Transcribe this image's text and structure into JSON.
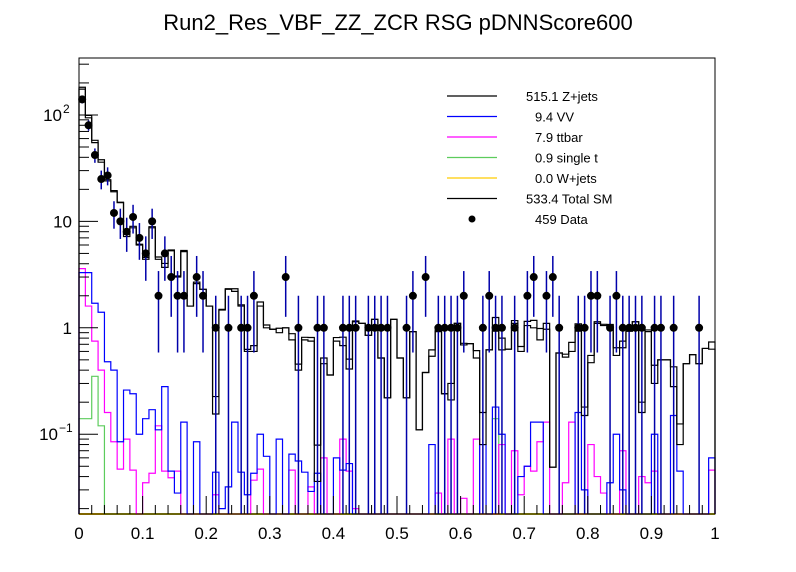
{
  "chart_data": {
    "type": "histogram",
    "title": "Run2_Res_VBF_ZZ_ZCR RSG  pDNNScore600",
    "xlabel": "",
    "ylabel": "",
    "xlim": [
      0,
      1
    ],
    "ylim": [
      0.0178,
      343
    ],
    "yscale": "log",
    "nbins": 100,
    "x_tick_labels": [
      "0",
      "0.1",
      "0.2",
      "0.3",
      "0.4",
      "0.5",
      "0.6",
      "0.7",
      "0.8",
      "0.9",
      "1"
    ],
    "y_tick_labels": [
      {
        "value": 100,
        "base": "10",
        "exp": "2"
      },
      {
        "value": 10,
        "base": "10",
        "exp": ""
      },
      {
        "value": 1,
        "base": "1",
        "exp": ""
      },
      {
        "value": 0.1,
        "base": "10",
        "exp": "−1"
      }
    ],
    "legend_position": "top-right",
    "series": [
      {
        "name": "Z+jets",
        "legend": "515.1 Z+jets",
        "color": "#000000",
        "values": [
          175,
          94,
          55,
          36,
          24,
          19,
          15,
          7.2,
          8.7,
          6,
          4.4,
          8.7,
          4.4,
          3.7,
          5.3,
          3,
          5.2,
          1.6,
          2.6,
          2.3,
          1.6,
          0.155,
          1.47,
          2.3,
          2.2,
          1.6,
          0.6,
          0.6,
          1.6,
          1.0,
          0.97,
          0.9,
          1.0,
          0.77,
          0.4,
          0.77,
          0.75,
          0.036,
          0.46,
          0.36,
          0.75,
          0.68,
          0.41,
          1.14,
          1.1,
          0.85,
          1.2,
          0.52,
          0.22,
          1.2,
          0.52,
          0.22,
          0.92,
          0.11,
          0.38,
          0.54,
          0.92,
          0.24,
          0.21,
          1.1,
          0.69,
          0.71,
          0.52,
          0.08,
          0.62,
          0.93,
          0.62,
          0.63,
          1.1,
          0.6,
          1.05,
          1.0,
          0.77,
          0.97,
          0.049,
          0.58,
          0.53,
          0.6,
          0.93,
          0.15,
          0.47,
          1.1,
          1.05,
          1.04,
          0.55,
          0.65,
          0.93,
          1.14,
          0.16,
          0.92,
          0.3,
          0.5,
          0.5,
          0.28,
          0.08,
          0.46,
          0.56,
          0.46,
          0.64,
          0.63
        ]
      },
      {
        "name": "VV",
        "legend": "9.4 VV",
        "color": "#0000ff",
        "values": [
          3.3,
          3.3,
          1.7,
          1.4,
          0.48,
          0.4,
          0.085,
          0.26,
          0.24,
          0.1,
          0.14,
          0.17,
          0.11,
          0.28,
          0.045,
          0.028,
          0.13,
          0,
          0.085,
          0,
          0,
          0.044,
          0.02,
          0.032,
          0.13,
          0.044,
          0.027,
          0.043,
          0.1,
          0.062,
          0,
          0.09,
          0,
          0.065,
          0.056,
          0.044,
          0.029,
          0.043,
          0,
          0,
          0.06,
          0.046,
          0.053,
          0,
          0,
          0,
          0,
          0,
          0,
          0,
          0,
          0,
          0,
          0,
          0,
          0.08,
          0,
          0,
          0,
          0,
          0,
          0,
          0,
          0.08,
          0,
          0.18,
          0.1,
          0,
          0,
          0.04,
          0.05,
          0.13,
          0.13,
          0,
          0,
          0,
          0,
          0,
          0.16,
          0.03,
          0,
          0,
          0,
          0.035,
          0.1,
          0.03,
          0,
          0,
          0,
          0,
          0.1,
          0,
          0,
          0.15,
          0.045,
          0,
          0,
          0,
          0,
          0.06
        ]
      },
      {
        "name": "ttbar",
        "legend": "7.9 ttbar",
        "color": "#ff00ff",
        "values": [
          3.6,
          1.6,
          0.75,
          0.4,
          0.16,
          0.085,
          0.047,
          0.09,
          0.046,
          0,
          0.035,
          0.043,
          0.12,
          0.045,
          0.039,
          0.045,
          0,
          0,
          0,
          0,
          0,
          0.027,
          0,
          0,
          0,
          0,
          0,
          0.037,
          0.047,
          0,
          0,
          0,
          0,
          0.046,
          0,
          0,
          0.032,
          0,
          0.06,
          0,
          0,
          0.09,
          0.045,
          0.02,
          0,
          0,
          0,
          0,
          0,
          0,
          0,
          0,
          0,
          0,
          0,
          0,
          0.028,
          0,
          0.09,
          0,
          0.025,
          0,
          0.09,
          0,
          0,
          0,
          0.08,
          0,
          0.07,
          0.027,
          0.05,
          0.045,
          0.085,
          0.13,
          0,
          0,
          0.035,
          0.13,
          0,
          0,
          0.08,
          0.04,
          0.028,
          0,
          0,
          0.07,
          0,
          0,
          0.04,
          0.035,
          0.045,
          0,
          0,
          0,
          0,
          0,
          0,
          0,
          0,
          0.046
        ]
      },
      {
        "name": "single t",
        "legend": "0.9 single t",
        "color": "#5ccc5c",
        "values": [
          0.14,
          0.14,
          0.35,
          0.12,
          0,
          0,
          0,
          0,
          0,
          0,
          0,
          0,
          0,
          0,
          0,
          0,
          0,
          0,
          0,
          0,
          0,
          0,
          0,
          0,
          0,
          0,
          0,
          0,
          0,
          0,
          0,
          0,
          0,
          0,
          0,
          0,
          0,
          0,
          0,
          0,
          0,
          0,
          0,
          0,
          0,
          0,
          0,
          0,
          0,
          0,
          0,
          0,
          0,
          0,
          0,
          0,
          0,
          0,
          0,
          0,
          0,
          0,
          0,
          0,
          0,
          0.14,
          0,
          0,
          0,
          0,
          0,
          0,
          0,
          0,
          0,
          0,
          0,
          0,
          0,
          0,
          0,
          0,
          0,
          0,
          0,
          0,
          0,
          0,
          0,
          0,
          0,
          0,
          0,
          0,
          0,
          0,
          0,
          0,
          0,
          0
        ]
      },
      {
        "name": "W+jets",
        "legend": "0.0 W+jets",
        "color": "#ffcc00",
        "values": []
      },
      {
        "name": "Total SM",
        "legend": "533.4 Total SM",
        "color": "#000000",
        "values": []
      }
    ],
    "data": {
      "name": "Data",
      "legend": "459 Data",
      "marker_color": "#000000",
      "error_color": "#0000aa",
      "counts": {
        "0": 140,
        "1": 80,
        "2": 42,
        "3": 25,
        "4": 27,
        "5": 12,
        "6": 10,
        "7": 8,
        "8": 11,
        "9": 7,
        "10": 5,
        "11": 10,
        "12": 2,
        "13": 5,
        "14": 3,
        "15": 2,
        "16": 2,
        "18": 3,
        "19": 2,
        "21": 1,
        "23": 1,
        "25": 1,
        "26": 1,
        "27": 2,
        "32": 3,
        "34": 1,
        "37": 1,
        "38": 1,
        "41": 1,
        "42": 1,
        "43": 1,
        "45": 1,
        "46": 1,
        "47": 1,
        "48": 1,
        "51": 1,
        "52": 2,
        "54": 3,
        "56": 1,
        "57": 1,
        "58": 1,
        "59": 1,
        "60": 2,
        "63": 1,
        "64": 2,
        "65": 1,
        "66": 1,
        "68": 1,
        "70": 2,
        "71": 3,
        "73": 2,
        "74": 3,
        "75": 1,
        "78": 1,
        "79": 1,
        "80": 2,
        "81": 2,
        "83": 1,
        "84": 2,
        "85": 1,
        "86": 1,
        "87": 1,
        "88": 1,
        "90": 1,
        "91": 1,
        "93": 1,
        "97": 1
      }
    }
  }
}
